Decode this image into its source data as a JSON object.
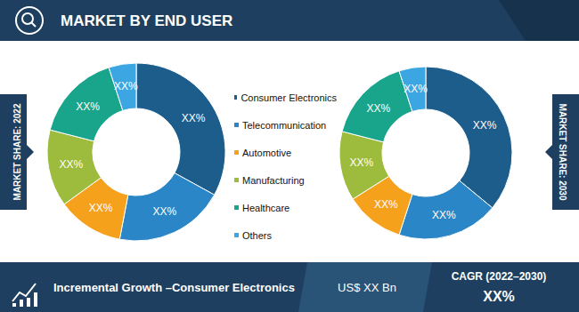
{
  "header": {
    "title": "MARKET BY END USER"
  },
  "chart_data": [
    {
      "type": "pie",
      "title": "MARKET SHARE: 2022",
      "categories": [
        "Consumer Electronics",
        "Telecommunication",
        "Automotive",
        "Manufacturing",
        "Healthcare",
        "Others"
      ],
      "values": [
        33,
        20,
        12,
        14,
        16,
        5
      ],
      "value_labels": [
        "XX%",
        "XX%",
        "XX%",
        "XX%",
        "XX%",
        "XX%"
      ],
      "colors": [
        "#1c5d8c",
        "#2a86c6",
        "#f5a11c",
        "#9dbb3c",
        "#19a58b",
        "#3ba6e2"
      ],
      "data_labels": true,
      "legend": "right"
    },
    {
      "type": "pie",
      "title": "MARKET SHARE: 2030",
      "categories": [
        "Consumer Electronics",
        "Telecommunication",
        "Automotive",
        "Manufacturing",
        "Healthcare",
        "Others"
      ],
      "values": [
        36,
        19,
        11,
        13,
        16,
        5
      ],
      "value_labels": [
        "XX%",
        "XX%",
        "XX%",
        "XX%",
        "XX%",
        "XX%"
      ],
      "colors": [
        "#1c5d8c",
        "#2a86c6",
        "#f5a11c",
        "#9dbb3c",
        "#19a58b",
        "#3ba6e2"
      ],
      "data_labels": true
    }
  ],
  "footer": {
    "label": "Incremental Growth –Consumer Electronics",
    "value": "US$ XX Bn",
    "cagr_label": "CAGR (2022–2030)",
    "cagr_value": "XX%"
  }
}
